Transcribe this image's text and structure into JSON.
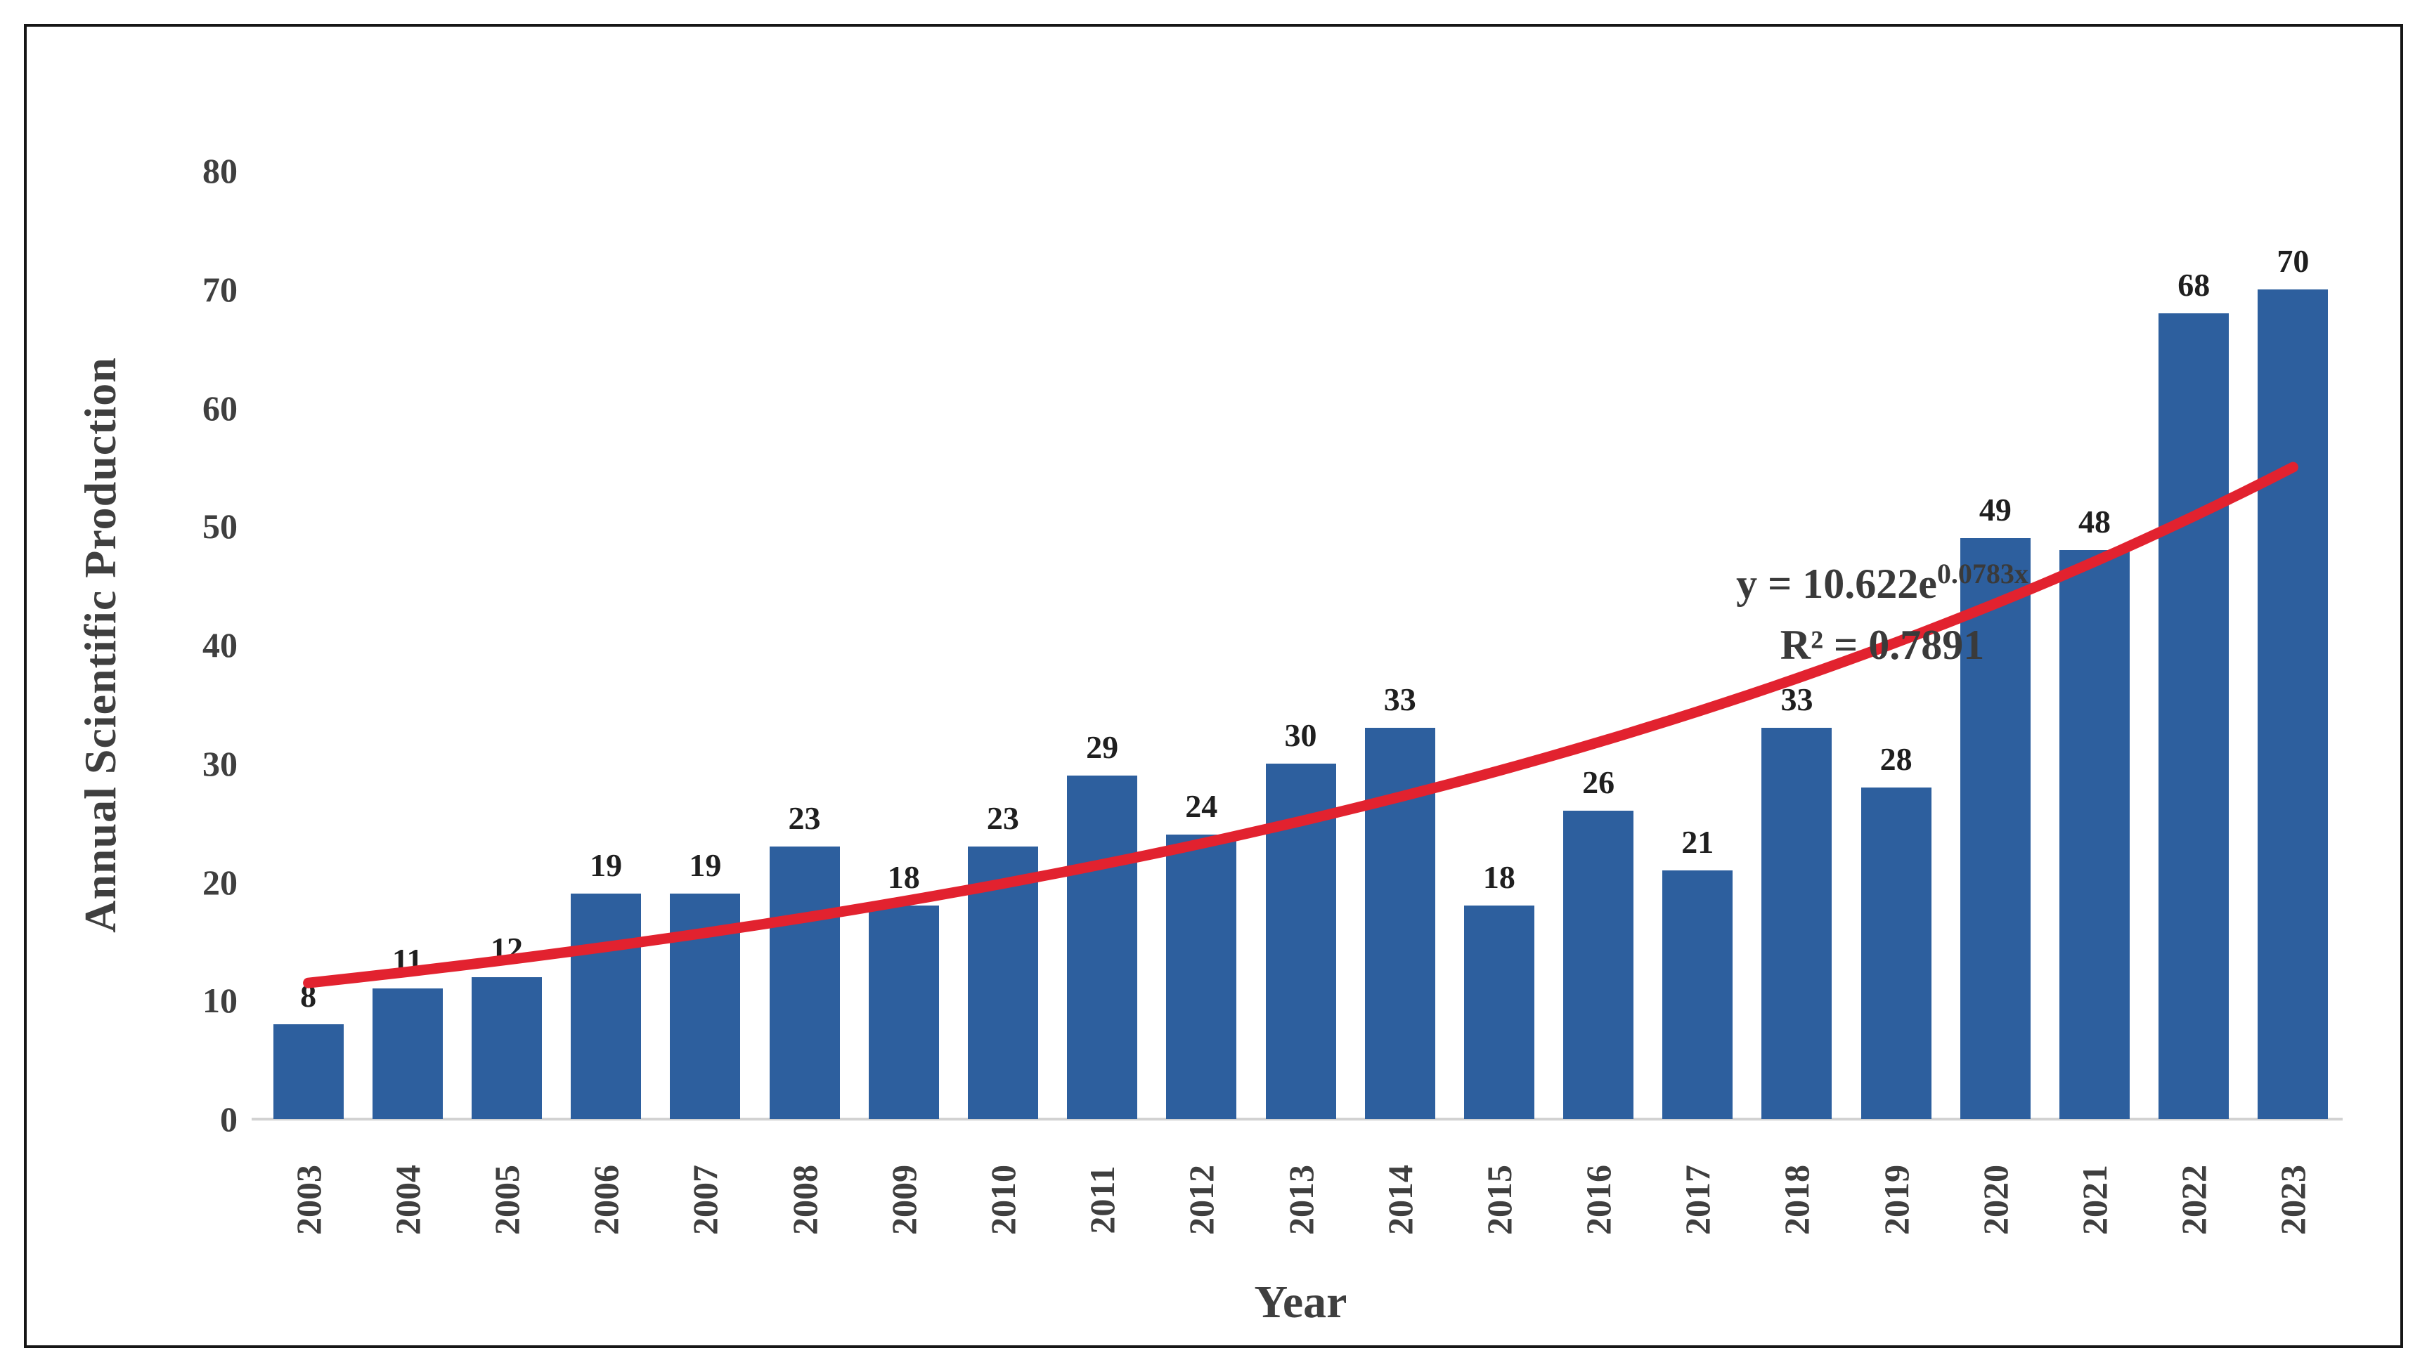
{
  "chart_data": {
    "type": "bar",
    "title": "",
    "xlabel": "Year",
    "ylabel": "Annual Scientific Production",
    "categories": [
      "2003",
      "2004",
      "2005",
      "2006",
      "2007",
      "2008",
      "2009",
      "2010",
      "2011",
      "2012",
      "2013",
      "2014",
      "2015",
      "2016",
      "2017",
      "2018",
      "2019",
      "2020",
      "2021",
      "2022",
      "2023"
    ],
    "values": [
      8,
      11,
      12,
      19,
      19,
      23,
      18,
      23,
      29,
      24,
      30,
      33,
      18,
      26,
      21,
      33,
      28,
      49,
      48,
      68,
      70
    ],
    "ylim": [
      0,
      80
    ],
    "yticks": [
      0,
      10,
      20,
      30,
      40,
      50,
      60,
      70,
      80
    ],
    "grid": false,
    "legend": "none",
    "bar_color": "#2D5F9E",
    "trendline": {
      "type": "exponential",
      "a": 10.622,
      "b": 0.0783,
      "color": "#E2222F",
      "equation_base": "y = 10.622e",
      "equation_exponent": "0.0783x",
      "r_squared": "R² = 0.7891"
    }
  }
}
